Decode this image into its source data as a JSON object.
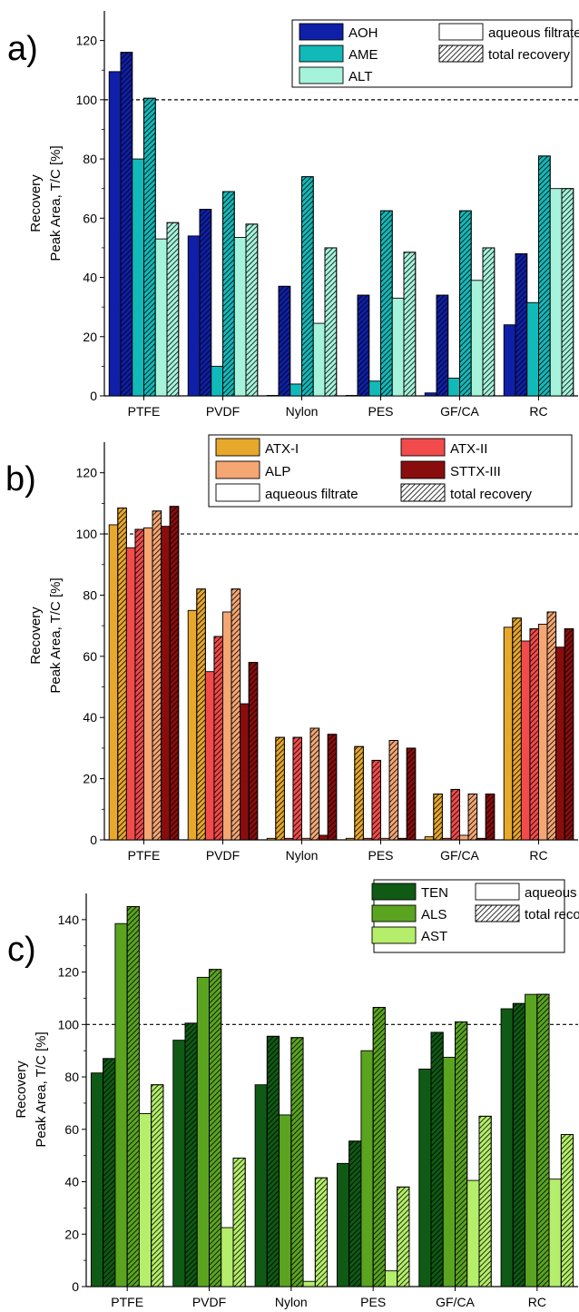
{
  "chart_data": [
    {
      "panel_label": "a)",
      "type": "bar",
      "categories": [
        "PTFE",
        "PVDF",
        "Nylon",
        "PES",
        "GF/CA",
        "RC"
      ],
      "ylabel": "Recovery\nPeak Area, T/C [%]",
      "ylim": [
        0,
        130
      ],
      "yticks": [
        0,
        20,
        40,
        60,
        80,
        100,
        120
      ],
      "reference_line": 100,
      "bar_style_legend": [
        {
          "label": "aqueous filtrate",
          "style": "plain"
        },
        {
          "label": "total recovery",
          "style": "hatched"
        }
      ],
      "series": [
        {
          "name": "AOH",
          "color": "#0f1fa8",
          "aqueous_filtrate": [
            109.5,
            54,
            0,
            0,
            1,
            24
          ],
          "total_recovery": [
            116,
            63,
            37,
            34,
            34,
            48
          ]
        },
        {
          "name": "AME",
          "color": "#12b9b9",
          "aqueous_filtrate": [
            80,
            10,
            4,
            5,
            6,
            31.5
          ],
          "total_recovery": [
            100.5,
            69,
            74,
            62.5,
            62.5,
            81
          ]
        },
        {
          "name": "ALT",
          "color": "#a6f3dc",
          "aqueous_filtrate": [
            53,
            53.5,
            24.5,
            33,
            39,
            70
          ],
          "total_recovery": [
            58.5,
            58,
            50,
            48.5,
            50,
            70
          ]
        }
      ],
      "legend_position": "top-right"
    },
    {
      "panel_label": "b)",
      "type": "bar",
      "categories": [
        "PTFE",
        "PVDF",
        "Nylon",
        "PES",
        "GF/CA",
        "RC"
      ],
      "ylabel": "Recovery\nPeak Area, T/C [%]",
      "ylim": [
        0,
        130
      ],
      "yticks": [
        0,
        20,
        40,
        60,
        80,
        100,
        120
      ],
      "reference_line": 100,
      "bar_style_legend": [
        {
          "label": "aqueous filtrate",
          "style": "plain"
        },
        {
          "label": "total recovery",
          "style": "hatched"
        }
      ],
      "series": [
        {
          "name": "ATX-I",
          "color": "#e8a82c",
          "aqueous_filtrate": [
            103,
            75,
            0.5,
            0.5,
            1,
            69.5
          ],
          "total_recovery": [
            108.5,
            82,
            33.5,
            30.5,
            15,
            72.5
          ]
        },
        {
          "name": "ATX-II",
          "color": "#f24b4b",
          "aqueous_filtrate": [
            95.5,
            55,
            0.5,
            0.5,
            0.5,
            65
          ],
          "total_recovery": [
            101.5,
            66.5,
            33.5,
            26,
            16.5,
            69
          ]
        },
        {
          "name": "ALP",
          "color": "#f4a673",
          "aqueous_filtrate": [
            102,
            74.5,
            0.5,
            0.5,
            1.5,
            70.5
          ],
          "total_recovery": [
            107.5,
            82,
            36.5,
            32.5,
            15,
            74.5
          ]
        },
        {
          "name": "STTX-III",
          "color": "#8a0d0d",
          "aqueous_filtrate": [
            102.5,
            44.5,
            1.5,
            0.5,
            0.5,
            63
          ],
          "total_recovery": [
            109,
            58,
            34.5,
            30,
            15,
            69
          ]
        }
      ],
      "legend_position": "top-right"
    },
    {
      "panel_label": "c)",
      "type": "bar",
      "categories": [
        "PTFE",
        "PVDF",
        "Nylon",
        "PES",
        "GF/CA",
        "RC"
      ],
      "ylabel": "Recovery\nPeak Area, T/C [%]",
      "ylim": [
        0,
        150
      ],
      "yticks": [
        0,
        20,
        40,
        60,
        80,
        100,
        120,
        140
      ],
      "reference_line": 100,
      "bar_style_legend": [
        {
          "label": "aqueous fitrate",
          "style": "plain"
        },
        {
          "label": "total recovery",
          "style": "hatched"
        }
      ],
      "series": [
        {
          "name": "TEN",
          "color": "#0f5a14",
          "aqueous_filtrate": [
            81.5,
            94,
            77,
            47,
            83,
            106
          ],
          "total_recovery": [
            87,
            100.5,
            95.5,
            55.5,
            97,
            108
          ]
        },
        {
          "name": "ALS",
          "color": "#5aa420",
          "aqueous_filtrate": [
            138.5,
            118,
            65.5,
            90,
            87.5,
            111.5
          ],
          "total_recovery": [
            145,
            121,
            95,
            106.5,
            101,
            111.5
          ]
        },
        {
          "name": "AST",
          "color": "#b4ee6a",
          "aqueous_filtrate": [
            66,
            22.5,
            2,
            6,
            40.5,
            41
          ],
          "total_recovery": [
            77,
            49,
            41.5,
            38,
            65,
            58
          ]
        }
      ],
      "legend_position": "top-right"
    }
  ]
}
